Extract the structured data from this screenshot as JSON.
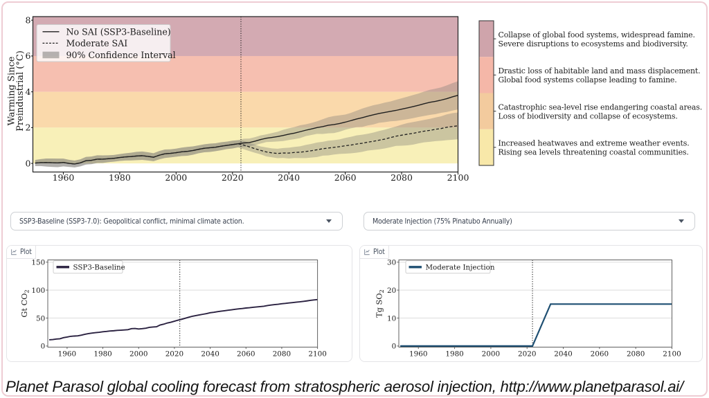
{
  "page": {
    "border_color": "#eeccd3"
  },
  "main_chart": {
    "ylabel_line1": "Warming Since",
    "ylabel_line2": "Preindustrial (°C)",
    "legend": {
      "no_sai": "No SAI (SSP3-Baseline)",
      "moderate": "Moderate SAI",
      "ci": "90% Confidence Interval"
    },
    "x_ticks": [
      "1960",
      "1980",
      "2000",
      "2020",
      "2040",
      "2060",
      "2080",
      "2100"
    ],
    "y_ticks": [
      "0",
      "2",
      "4",
      "6",
      "8"
    ],
    "risk_zones": [
      {
        "color": "#cfa4ab",
        "band_color": "#d3aab2",
        "temp_range": [
          6,
          8
        ],
        "lines": [
          "Collapse of global food systems, widespread famine.",
          "Severe disruptions to ecosystems and biodiversity."
        ]
      },
      {
        "color": "#f5b7a8",
        "band_color": "#f6bfb0",
        "temp_range": [
          4,
          6
        ],
        "lines": [
          "Drastic loss of habitable land and mass displacement.",
          "Global food systems collapse leading to famine."
        ]
      },
      {
        "color": "#f3cb9e",
        "band_color": "#fad9ab",
        "temp_range": [
          2,
          4
        ],
        "lines": [
          "Catastrophic sea-level rise endangering coastal areas.",
          "Loss of biodiversity and collapse of ecosystems."
        ]
      },
      {
        "color": "#f8e8a9",
        "band_color": "#f8f0b8",
        "temp_range": [
          0,
          2
        ],
        "lines": [
          "Increased heatwaves and extreme weather events.",
          "Rising sea levels threatening coastal communities."
        ]
      }
    ]
  },
  "controls": {
    "scenario": {
      "value": "SSP3-Baseline (SSP3-7.0): Geopolitical conflict, minimal climate action."
    },
    "injection": {
      "value": "Moderate Injection (75% Pinatubo Annually)"
    }
  },
  "cards": {
    "co2": {
      "tab_label": "Plot",
      "legend": "SSP3-Baseline",
      "ylabel_main": "Gt CO",
      "ylabel_sub": "2",
      "y_ticks": [
        "0",
        "50",
        "100",
        "150"
      ],
      "x_ticks": [
        "1960",
        "1980",
        "2000",
        "2020",
        "2040",
        "2060",
        "2080",
        "2100"
      ],
      "line_color": "#2a2140"
    },
    "so2": {
      "tab_label": "Plot",
      "legend": "Moderate Injection",
      "ylabel_main": "Tg SO",
      "ylabel_sub": "2",
      "y_ticks": [
        "0",
        "10",
        "20",
        "30"
      ],
      "x_ticks": [
        "1960",
        "1980",
        "2000",
        "2020",
        "2040",
        "2060",
        "2080",
        "2100"
      ],
      "line_color": "#1e4f72"
    }
  },
  "caption": {
    "text": "Planet Parasol global cooling forecast from stratospheric aerosol injection, http://www.planetparasol.ai/"
  },
  "chart_data": [
    {
      "id": "warming",
      "type": "line",
      "xlabel": "",
      "ylabel": "Warming Since Preindustrial (°C)",
      "x": [
        1950,
        1952,
        1954,
        1956,
        1958,
        1960,
        1962,
        1964,
        1966,
        1968,
        1970,
        1972,
        1974,
        1976,
        1978,
        1980,
        1982,
        1984,
        1986,
        1988,
        1990,
        1992,
        1994,
        1996,
        1998,
        2000,
        2002,
        2004,
        2006,
        2008,
        2010,
        2012,
        2014,
        2016,
        2018,
        2020,
        2022,
        2024,
        2026,
        2028,
        2030,
        2032,
        2034,
        2036,
        2038,
        2040,
        2042,
        2044,
        2046,
        2048,
        2050,
        2052,
        2054,
        2056,
        2058,
        2060,
        2062,
        2064,
        2066,
        2068,
        2070,
        2072,
        2074,
        2076,
        2078,
        2080,
        2082,
        2084,
        2086,
        2088,
        2090,
        2092,
        2094,
        2096,
        2098,
        2100
      ],
      "series": [
        {
          "name": "No SAI (SSP3-Baseline)",
          "style": "solid",
          "color": "#1f1f1f",
          "values": [
            0.021,
            0.046,
            0.05,
            0.04,
            0.029,
            0.052,
            0.003,
            -0.032,
            0.03,
            0.15,
            0.173,
            0.237,
            0.238,
            0.262,
            0.287,
            0.33,
            0.363,
            0.384,
            0.414,
            0.431,
            0.391,
            0.347,
            0.458,
            0.539,
            0.56,
            0.6,
            0.647,
            0.674,
            0.719,
            0.789,
            0.846,
            0.874,
            0.906,
            0.961,
            1.008,
            1.052,
            1.098,
            1.144,
            1.167,
            1.242,
            1.335,
            1.406,
            1.452,
            1.498,
            1.564,
            1.635,
            1.694,
            1.772,
            1.854,
            1.926,
            2.003,
            2.057,
            2.13,
            2.169,
            2.229,
            2.304,
            2.391,
            2.482,
            2.551,
            2.641,
            2.715,
            2.791,
            2.849,
            2.906,
            2.961,
            3.029,
            3.097,
            3.172,
            3.249,
            3.336,
            3.411,
            3.466,
            3.536,
            3.615,
            3.719,
            3.804
          ]
        },
        {
          "name": "Moderate SAI",
          "style": "dashed",
          "color": "#1f1f1f",
          "values": [
            0.021,
            0.046,
            0.05,
            0.04,
            0.029,
            0.052,
            0.003,
            -0.032,
            0.03,
            0.15,
            0.173,
            0.237,
            0.238,
            0.262,
            0.287,
            0.33,
            0.363,
            0.384,
            0.414,
            0.431,
            0.391,
            0.347,
            0.458,
            0.539,
            0.56,
            0.6,
            0.647,
            0.674,
            0.719,
            0.789,
            0.846,
            0.874,
            0.906,
            0.961,
            1.008,
            1.052,
            1.098,
            1.022,
            0.921,
            0.82,
            0.726,
            0.642,
            0.59,
            0.555,
            0.582,
            0.577,
            0.612,
            0.626,
            0.665,
            0.71,
            0.762,
            0.821,
            0.858,
            0.897,
            0.937,
            0.985,
            1.025,
            1.082,
            1.125,
            1.188,
            1.237,
            1.297,
            1.358,
            1.44,
            1.521,
            1.576,
            1.63,
            1.678,
            1.744,
            1.802,
            1.846,
            1.905,
            1.949,
            2.019,
            2.063,
            2.1
          ]
        }
      ],
      "bands": [
        {
          "name": "No SAI 90% CI",
          "lower": [
            -0.149,
            -0.147,
            -0.176,
            -0.195,
            -0.208,
            -0.166,
            -0.196,
            -0.222,
            -0.167,
            -0.062,
            -0.04,
            0.023,
            0.028,
            0.069,
            0.102,
            0.139,
            0.161,
            0.17,
            0.18,
            0.198,
            0.161,
            0.125,
            0.224,
            0.302,
            0.337,
            0.376,
            0.413,
            0.428,
            0.487,
            0.571,
            0.624,
            0.642,
            0.685,
            0.737,
            0.801,
            0.834,
            0.896,
            0.905,
            0.944,
            1.018,
            1.108,
            1.191,
            1.207,
            1.227,
            1.251,
            1.309,
            1.356,
            1.414,
            1.524,
            1.591,
            1.652,
            1.644,
            1.679,
            1.693,
            1.771,
            1.879,
            1.96,
            2.022,
            2.039,
            2.122,
            2.178,
            2.268,
            2.303,
            2.352,
            2.369,
            2.422,
            2.47,
            2.528,
            2.594,
            2.654,
            2.711,
            2.755,
            2.824,
            2.872,
            2.953,
            3.016
          ],
          "upper": [
            0.192,
            0.24,
            0.275,
            0.274,
            0.267,
            0.27,
            0.202,
            0.158,
            0.226,
            0.361,
            0.387,
            0.452,
            0.449,
            0.454,
            0.471,
            0.521,
            0.565,
            0.599,
            0.647,
            0.664,
            0.622,
            0.57,
            0.691,
            0.776,
            0.784,
            0.824,
            0.881,
            0.92,
            0.951,
            1.007,
            1.069,
            1.106,
            1.127,
            1.184,
            1.215,
            1.27,
            1.301,
            1.383,
            1.391,
            1.466,
            1.563,
            1.621,
            1.697,
            1.769,
            1.878,
            1.961,
            2.031,
            2.129,
            2.183,
            2.262,
            2.354,
            2.47,
            2.581,
            2.645,
            2.687,
            2.73,
            2.821,
            2.941,
            3.062,
            3.16,
            3.251,
            3.315,
            3.395,
            3.46,
            3.552,
            3.637,
            3.725,
            3.816,
            3.903,
            4.017,
            4.111,
            4.176,
            4.247,
            4.358,
            4.484,
            4.592
          ]
        },
        {
          "name": "Moderate SAI 90% CI",
          "lower": [
            -0.149,
            -0.147,
            -0.176,
            -0.195,
            -0.208,
            -0.166,
            -0.196,
            -0.222,
            -0.167,
            -0.062,
            -0.04,
            0.023,
            0.028,
            0.069,
            0.102,
            0.139,
            0.161,
            0.17,
            0.18,
            0.198,
            0.161,
            0.125,
            0.224,
            0.302,
            0.337,
            0.376,
            0.413,
            0.428,
            0.487,
            0.571,
            0.624,
            0.642,
            0.685,
            0.737,
            0.801,
            0.834,
            0.896,
            0.789,
            0.692,
            0.592,
            0.504,
            0.389,
            0.34,
            0.291,
            0.307,
            0.276,
            0.304,
            0.298,
            0.298,
            0.328,
            0.355,
            0.434,
            0.446,
            0.496,
            0.532,
            0.545,
            0.564,
            0.6,
            0.648,
            0.721,
            0.752,
            0.784,
            0.833,
            0.903,
            0.979,
            0.988,
            1.007,
            1.049,
            1.121,
            1.176,
            1.205,
            1.244,
            1.267,
            1.298,
            1.322,
            1.354
          ],
          "upper": [
            0.192,
            0.24,
            0.275,
            0.274,
            0.267,
            0.27,
            0.202,
            0.158,
            0.226,
            0.361,
            0.387,
            0.452,
            0.449,
            0.454,
            0.471,
            0.521,
            0.565,
            0.599,
            0.647,
            0.664,
            0.622,
            0.57,
            0.691,
            0.776,
            0.784,
            0.824,
            0.881,
            0.92,
            0.951,
            1.007,
            1.069,
            1.106,
            1.127,
            1.184,
            1.215,
            1.27,
            1.301,
            1.255,
            1.15,
            1.048,
            0.947,
            0.894,
            0.84,
            0.819,
            0.857,
            0.877,
            0.92,
            0.954,
            1.032,
            1.092,
            1.169,
            1.207,
            1.269,
            1.298,
            1.343,
            1.424,
            1.486,
            1.564,
            1.602,
            1.655,
            1.723,
            1.811,
            1.882,
            1.977,
            2.063,
            2.165,
            2.252,
            2.308,
            2.366,
            2.428,
            2.488,
            2.566,
            2.631,
            2.739,
            2.804,
            2.846
          ]
        }
      ],
      "band_color": "rgba(128,125,122,0.38)",
      "xlim": [
        1949.2,
        2100
      ],
      "ylim": [
        -0.48,
        8.2
      ],
      "x_ticks": [
        1960,
        1980,
        2000,
        2020,
        2040,
        2060,
        2080,
        2100
      ],
      "y_ticks": [
        0,
        2,
        4,
        6,
        8
      ],
      "vline": 2023
    },
    {
      "id": "co2",
      "type": "line",
      "xlabel": "",
      "ylabel": "Gt CO2",
      "x": [
        1950,
        1952,
        1954,
        1956,
        1958,
        1960,
        1962,
        1964,
        1966,
        1968,
        1970,
        1972,
        1974,
        1976,
        1978,
        1980,
        1982,
        1984,
        1986,
        1988,
        1990,
        1992,
        1994,
        1996,
        1998,
        2000,
        2002,
        2004,
        2006,
        2008,
        2010,
        2012,
        2014,
        2016,
        2018,
        2020,
        2022,
        2024,
        2026,
        2028,
        2030,
        2032,
        2034,
        2036,
        2038,
        2040,
        2042,
        2044,
        2046,
        2048,
        2050,
        2052,
        2054,
        2056,
        2058,
        2060,
        2062,
        2064,
        2066,
        2068,
        2070,
        2072,
        2074,
        2076,
        2078,
        2080,
        2082,
        2084,
        2086,
        2088,
        2090,
        2092,
        2094,
        2096,
        2098,
        2100
      ],
      "series": [
        {
          "name": "SSP3-Baseline",
          "style": "solid",
          "color": "#2a2140",
          "values": [
            11.044,
            11.528,
            12.449,
            12.968,
            14.886,
            15.978,
            17.339,
            17.816,
            18.161,
            19.414,
            20.96,
            22.296,
            23.21,
            23.898,
            24.587,
            25.526,
            26.073,
            26.888,
            27.255,
            27.922,
            28.31,
            28.746,
            29.208,
            31.078,
            31.338,
            30.394,
            31.015,
            31.892,
            33.296,
            33.973,
            34.408,
            37.546,
            39.049,
            41.156,
            42.522,
            44.369,
            46.231,
            47.777,
            49.647,
            51.434,
            53.235,
            54.418,
            55.637,
            56.809,
            58.003,
            59.461,
            60.286,
            61.378,
            62.262,
            63.09,
            63.945,
            64.826,
            65.729,
            66.546,
            67.066,
            67.953,
            68.433,
            69.323,
            69.853,
            70.472,
            71.165,
            72.304,
            73.274,
            74.11,
            74.729,
            75.551,
            76.234,
            77.061,
            77.685,
            78.381,
            78.973,
            79.757,
            80.645,
            81.578,
            82.418,
            83.004
          ]
        }
      ],
      "xlim": [
        1949.2,
        2100
      ],
      "ylim": [
        -2.0,
        154.0
      ],
      "x_ticks": [
        1960,
        1980,
        2000,
        2020,
        2040,
        2060,
        2080,
        2100
      ],
      "y_ticks": [
        0,
        50,
        100,
        150
      ],
      "vline": 2023,
      "grid": true
    },
    {
      "id": "so2",
      "type": "line",
      "xlabel": "",
      "ylabel": "Tg SO2",
      "x": [
        1950,
        2023,
        2033,
        2100
      ],
      "series": [
        {
          "name": "Moderate Injection",
          "style": "solid",
          "color": "#1e4f72",
          "values": [
            0.0,
            0.0,
            15.0,
            15.0
          ]
        }
      ],
      "xlim": [
        1949.2,
        2100
      ],
      "ylim": [
        -0.4,
        30.8
      ],
      "x_ticks": [
        1960,
        1980,
        2000,
        2020,
        2040,
        2060,
        2080,
        2100
      ],
      "y_ticks": [
        0,
        10,
        20,
        30
      ],
      "vline": 2023,
      "grid": true
    }
  ]
}
